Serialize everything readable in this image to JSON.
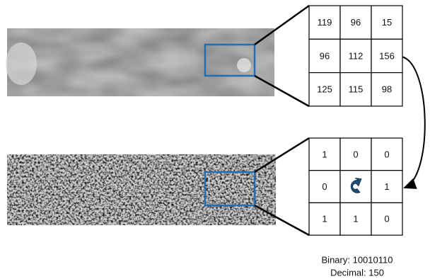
{
  "grids": [
    {
      "rows": [
        [
          119,
          96,
          15
        ],
        [
          96,
          112,
          156
        ],
        [
          125,
          115,
          98
        ]
      ]
    },
    {
      "rows": [
        [
          1,
          0,
          0
        ],
        [
          0,
          null,
          1
        ],
        [
          1,
          1,
          0
        ]
      ]
    }
  ],
  "result": {
    "binary": "Binary: 10010110",
    "decimal": "Decimal: 150"
  }
}
